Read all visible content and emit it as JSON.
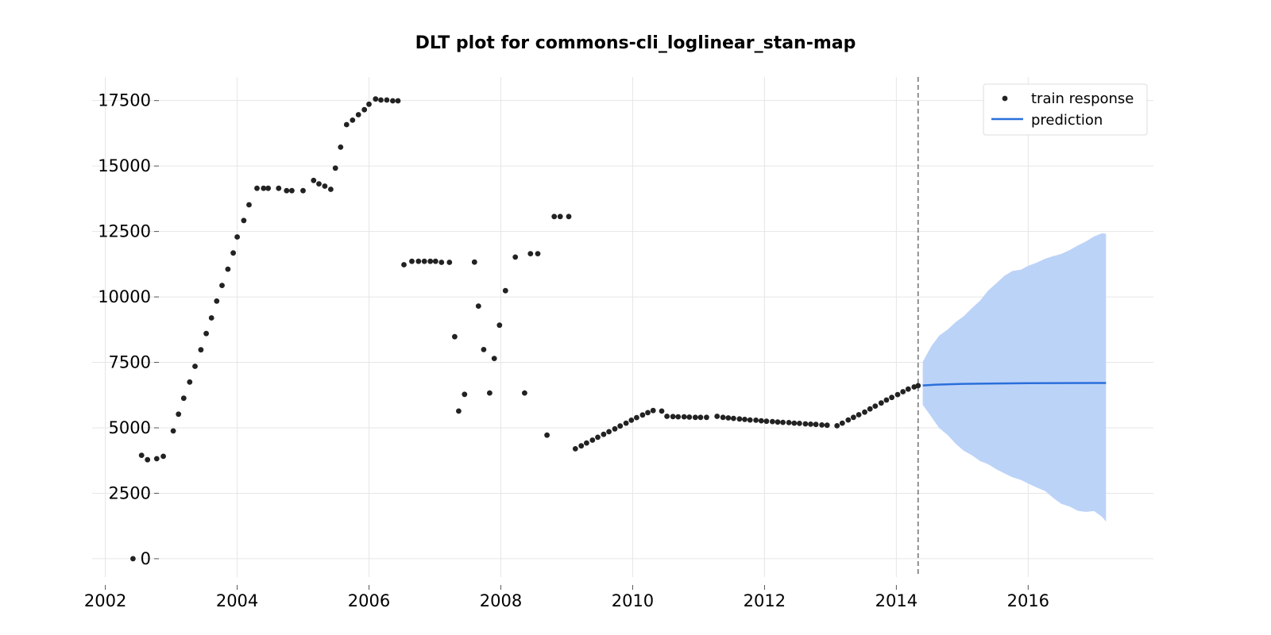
{
  "chart_data": {
    "type": "scatter",
    "title": "DLT plot for commons-cli_loglinear_stan-map",
    "xlabel": "",
    "ylabel": "",
    "xlim": [
      2001.8,
      2017.9
    ],
    "ylim": [
      -700,
      18400
    ],
    "x_ticks": [
      2002,
      2004,
      2006,
      2008,
      2010,
      2012,
      2014,
      2016
    ],
    "x_tick_labels": [
      "2002",
      "2004",
      "2006",
      "2008",
      "2010",
      "2012",
      "2014",
      "2016"
    ],
    "y_ticks": [
      0,
      2500,
      5000,
      7500,
      10000,
      12500,
      15000,
      17500
    ],
    "y_tick_labels": [
      "0",
      "2500",
      "5000",
      "7500",
      "10000",
      "12500",
      "15000",
      "17500"
    ],
    "grid": true,
    "legend": {
      "position": "top-right",
      "entries": [
        "train response",
        "prediction"
      ]
    },
    "train_cutoff": 2014.33,
    "colors": {
      "points": "#222222",
      "prediction": "#2a6fdb",
      "band": "#bcd3f8",
      "cutoff": "#777777"
    },
    "series": [
      {
        "name": "train response",
        "kind": "scatter",
        "x": [
          2002.42,
          2002.55,
          2002.64,
          2002.78,
          2002.88,
          2003.03,
          2003.11,
          2003.19,
          2003.28,
          2003.36,
          2003.45,
          2003.53,
          2003.61,
          2003.69,
          2003.77,
          2003.86,
          2003.94,
          2004.0,
          2004.1,
          2004.18,
          2004.3,
          2004.4,
          2004.47,
          2004.63,
          2004.75,
          2004.83,
          2005.0,
          2005.16,
          2005.24,
          2005.33,
          2005.42,
          2005.49,
          2005.57,
          2005.66,
          2005.75,
          2005.84,
          2005.93,
          2006.0,
          2006.1,
          2006.18,
          2006.27,
          2006.36,
          2006.44,
          2006.53,
          2006.65,
          2006.75,
          2006.84,
          2006.93,
          2007.01,
          2007.1,
          2007.22,
          2007.3,
          2007.36,
          2007.45,
          2007.6,
          2007.66,
          2007.74,
          2007.83,
          2007.9,
          2007.98,
          2008.07,
          2008.22,
          2008.36,
          2008.45,
          2008.56,
          2008.7,
          2008.81,
          2008.9,
          2009.03,
          2009.13,
          2009.22,
          2009.3,
          2009.39,
          2009.47,
          2009.56,
          2009.64,
          2009.73,
          2009.81,
          2009.9,
          2009.98,
          2010.06,
          2010.15,
          2010.23,
          2010.31,
          2010.44,
          2010.52,
          2010.61,
          2010.69,
          2010.78,
          2010.86,
          2010.95,
          2011.03,
          2011.12,
          2011.28,
          2011.37,
          2011.45,
          2011.53,
          2011.62,
          2011.7,
          2011.78,
          2011.87,
          2011.95,
          2012.03,
          2012.12,
          2012.2,
          2012.28,
          2012.37,
          2012.45,
          2012.53,
          2012.62,
          2012.7,
          2012.78,
          2012.87,
          2012.95,
          2013.1,
          2013.18,
          2013.27,
          2013.35,
          2013.43,
          2013.52,
          2013.6,
          2013.68,
          2013.77,
          2013.85,
          2013.93,
          2014.02,
          2014.1,
          2014.18,
          2014.27,
          2014.33
        ],
        "y": [
          0,
          3950,
          3780,
          3820,
          3910,
          4880,
          5520,
          6130,
          6750,
          7350,
          7980,
          8600,
          9200,
          9840,
          10440,
          11060,
          11680,
          12290,
          12920,
          13520,
          14150,
          14150,
          14150,
          14150,
          14060,
          14060,
          14060,
          14450,
          14320,
          14230,
          14110,
          14920,
          15720,
          16580,
          16750,
          16960,
          17150,
          17360,
          17560,
          17520,
          17520,
          17490,
          17490,
          11230,
          11360,
          11360,
          11360,
          11360,
          11360,
          11320,
          11320,
          8480,
          5640,
          6280,
          11330,
          9650,
          7990,
          6330,
          7650,
          8920,
          10240,
          11520,
          6330,
          11650,
          11650,
          4720,
          13070,
          13070,
          13070,
          4200,
          4310,
          4420,
          4530,
          4640,
          4750,
          4850,
          4960,
          5070,
          5180,
          5290,
          5390,
          5490,
          5580,
          5660,
          5640,
          5440,
          5430,
          5420,
          5420,
          5410,
          5400,
          5400,
          5400,
          5440,
          5400,
          5380,
          5360,
          5340,
          5320,
          5300,
          5290,
          5270,
          5250,
          5240,
          5220,
          5210,
          5200,
          5180,
          5170,
          5150,
          5140,
          5130,
          5110,
          5100,
          5080,
          5180,
          5300,
          5400,
          5500,
          5600,
          5720,
          5830,
          5950,
          6060,
          6160,
          6270,
          6380,
          6480,
          6560,
          6610
        ]
      },
      {
        "name": "prediction",
        "kind": "line",
        "x": [
          2014.4,
          2014.6,
          2015.0,
          2015.5,
          2016.0,
          2016.5,
          2017.0,
          2017.18
        ],
        "y": [
          6620,
          6650,
          6680,
          6695,
          6705,
          6710,
          6712,
          6712
        ]
      }
    ],
    "prediction_interval": {
      "x": [
        2014.4,
        2014.53,
        2014.65,
        2014.78,
        2014.9,
        2015.02,
        2015.14,
        2015.27,
        2015.39,
        2015.52,
        2015.64,
        2015.76,
        2015.89,
        2016.01,
        2016.13,
        2016.26,
        2016.38,
        2016.5,
        2016.63,
        2016.75,
        2016.87,
        2017.0,
        2017.12,
        2017.18
      ],
      "lower": [
        5880,
        5420,
        4990,
        4720,
        4390,
        4130,
        3960,
        3730,
        3610,
        3410,
        3260,
        3110,
        3010,
        2860,
        2720,
        2580,
        2320,
        2100,
        1990,
        1830,
        1790,
        1820,
        1600,
        1420
      ],
      "upper": [
        7520,
        8120,
        8520,
        8760,
        9040,
        9260,
        9560,
        9860,
        10240,
        10530,
        10810,
        10990,
        11040,
        11200,
        11310,
        11460,
        11560,
        11640,
        11790,
        11960,
        12110,
        12310,
        12430,
        12410
      ]
    }
  }
}
